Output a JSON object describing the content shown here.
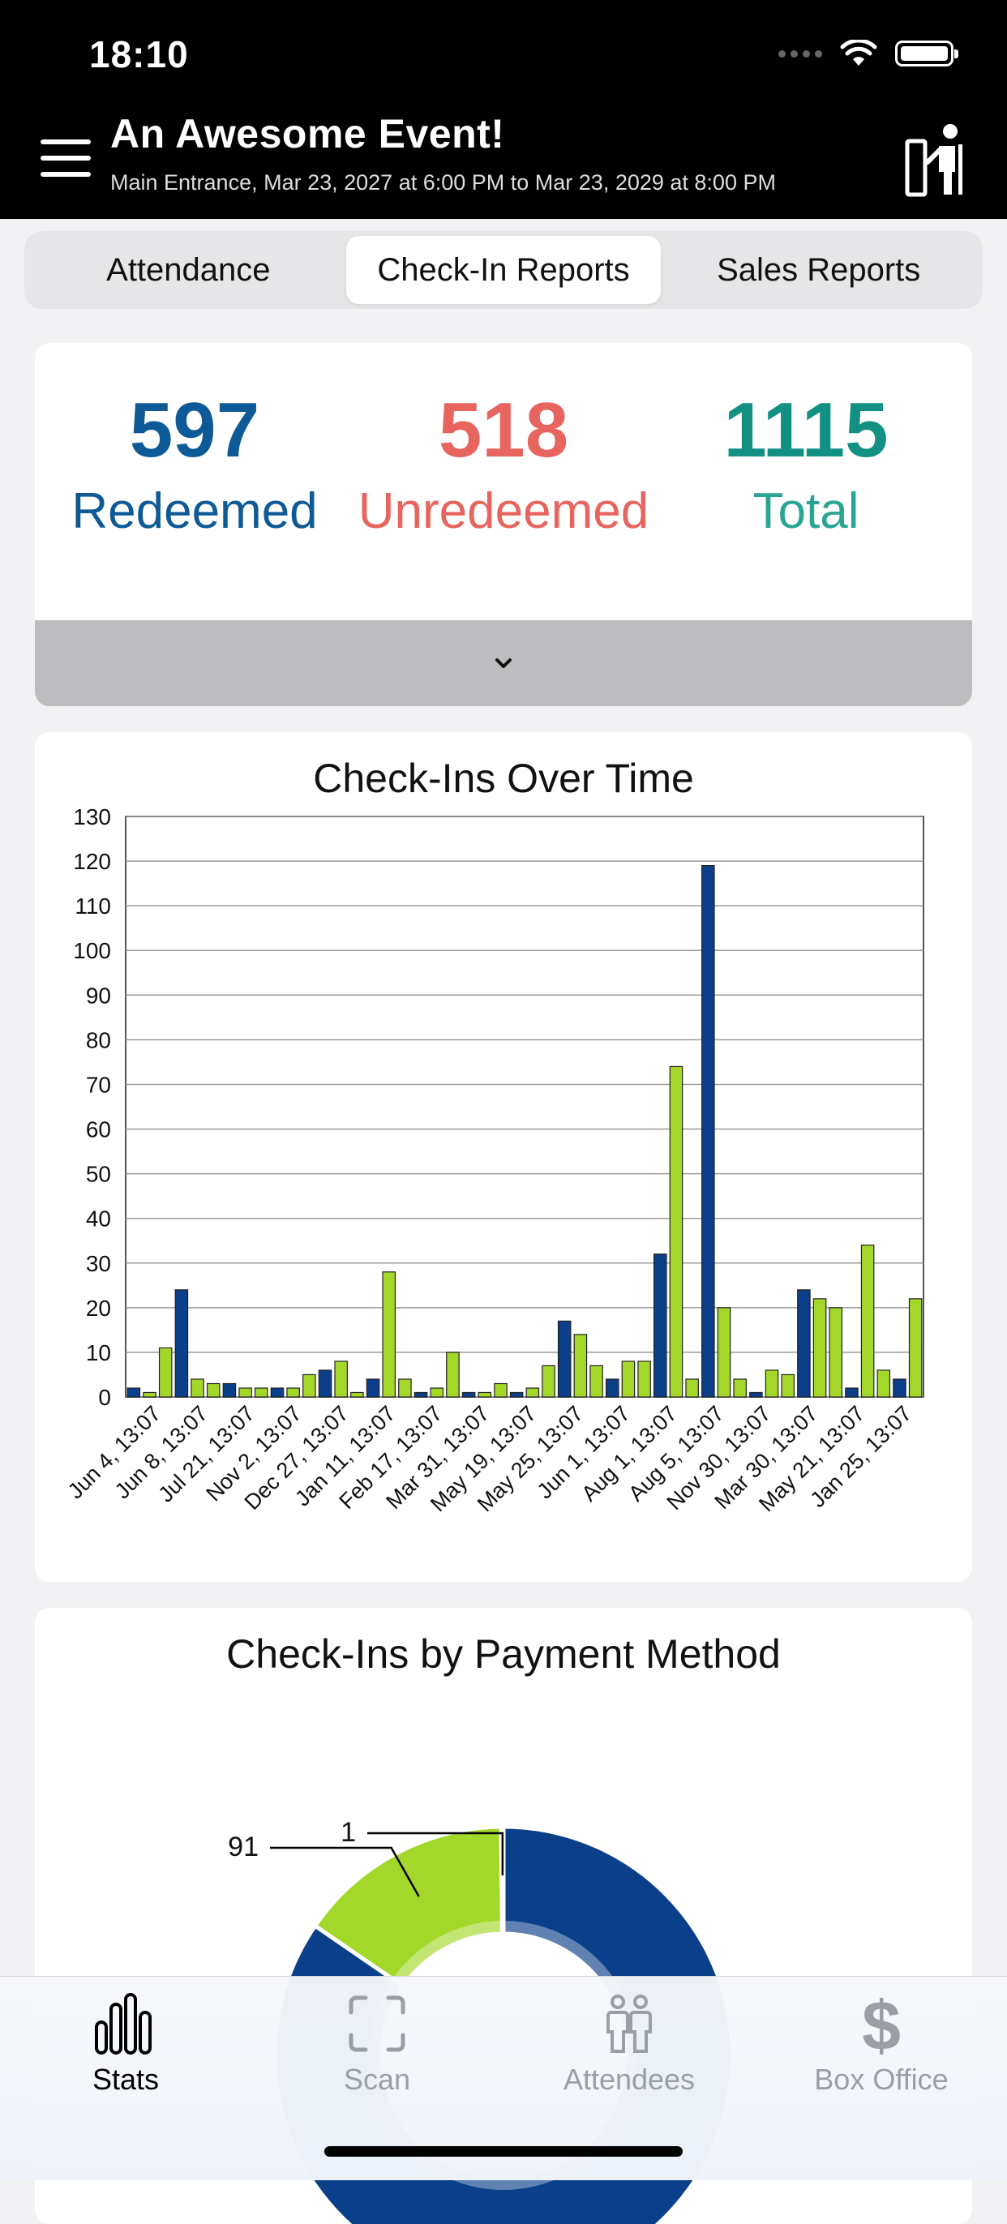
{
  "status_bar": {
    "time": "18:10"
  },
  "header": {
    "title": "An Awesome Event!",
    "subtitle": "Main Entrance, Mar 23, 2027 at 6:00 PM to Mar 23, 2029 at 8:00 PM"
  },
  "tabs": [
    {
      "label": "Attendance",
      "active": false
    },
    {
      "label": "Check-In Reports",
      "active": true
    },
    {
      "label": "Sales Reports",
      "active": false
    }
  ],
  "summary": {
    "redeemed": {
      "value": "597",
      "label": "Redeemed",
      "color": "#0d5a96"
    },
    "unredeemed": {
      "value": "518",
      "label": "Unredeemed",
      "color": "#e8645e"
    },
    "total": {
      "value": "1115",
      "label": "Total",
      "color": "#129183"
    }
  },
  "colors": {
    "navy": "#0b3f8a",
    "lime": "#a3d82a"
  },
  "chart_data": [
    {
      "type": "bar",
      "title": "Check-Ins Over Time",
      "xlabel": "",
      "ylabel": "",
      "ylim": [
        0,
        130
      ],
      "yticks": [
        0,
        10,
        20,
        30,
        40,
        50,
        60,
        70,
        80,
        90,
        100,
        110,
        120,
        130
      ],
      "grid": true,
      "tick_labels": [
        "Jun 4, 13:07",
        "Jun 8, 13:07",
        "Jul 21, 13:07",
        "Nov 2, 13:07",
        "Dec 27, 13:07",
        "Jan 11, 13:07",
        "Feb 17, 13:07",
        "Mar 31, 13:07",
        "May 19, 13:07",
        "May 25, 13:07",
        "Jun 1, 13:07",
        "Aug 1, 13:07",
        "Aug 5, 13:07",
        "Nov 30, 13:07",
        "Mar 30, 13:07",
        "May 21, 13:07",
        "Jan 25, 13:07"
      ],
      "bars": [
        {
          "v": 2,
          "c": "navy"
        },
        {
          "v": 1,
          "c": "lime"
        },
        {
          "v": 11,
          "c": "lime"
        },
        {
          "v": 24,
          "c": "navy"
        },
        {
          "v": 4,
          "c": "lime"
        },
        {
          "v": 3,
          "c": "lime"
        },
        {
          "v": 3,
          "c": "navy"
        },
        {
          "v": 2,
          "c": "lime"
        },
        {
          "v": 2,
          "c": "lime"
        },
        {
          "v": 2,
          "c": "navy"
        },
        {
          "v": 2,
          "c": "lime"
        },
        {
          "v": 5,
          "c": "lime"
        },
        {
          "v": 6,
          "c": "navy"
        },
        {
          "v": 8,
          "c": "lime"
        },
        {
          "v": 1,
          "c": "lime"
        },
        {
          "v": 4,
          "c": "navy"
        },
        {
          "v": 28,
          "c": "lime"
        },
        {
          "v": 4,
          "c": "lime"
        },
        {
          "v": 1,
          "c": "navy"
        },
        {
          "v": 2,
          "c": "lime"
        },
        {
          "v": 10,
          "c": "lime"
        },
        {
          "v": 1,
          "c": "navy"
        },
        {
          "v": 1,
          "c": "lime"
        },
        {
          "v": 3,
          "c": "lime"
        },
        {
          "v": 1,
          "c": "navy"
        },
        {
          "v": 2,
          "c": "lime"
        },
        {
          "v": 7,
          "c": "lime"
        },
        {
          "v": 17,
          "c": "navy"
        },
        {
          "v": 14,
          "c": "lime"
        },
        {
          "v": 7,
          "c": "lime"
        },
        {
          "v": 4,
          "c": "navy"
        },
        {
          "v": 8,
          "c": "lime"
        },
        {
          "v": 8,
          "c": "lime"
        },
        {
          "v": 32,
          "c": "navy"
        },
        {
          "v": 74,
          "c": "lime"
        },
        {
          "v": 4,
          "c": "lime"
        },
        {
          "v": 119,
          "c": "navy"
        },
        {
          "v": 20,
          "c": "lime"
        },
        {
          "v": 4,
          "c": "lime"
        },
        {
          "v": 1,
          "c": "navy"
        },
        {
          "v": 6,
          "c": "lime"
        },
        {
          "v": 5,
          "c": "lime"
        },
        {
          "v": 24,
          "c": "navy"
        },
        {
          "v": 22,
          "c": "lime"
        },
        {
          "v": 20,
          "c": "lime"
        },
        {
          "v": 2,
          "c": "navy"
        },
        {
          "v": 34,
          "c": "lime"
        },
        {
          "v": 6,
          "c": "lime"
        },
        {
          "v": 4,
          "c": "navy"
        },
        {
          "v": 22,
          "c": "lime"
        }
      ]
    },
    {
      "type": "pie",
      "title": "Check-Ins by Payment Method",
      "donut": true,
      "labels_shown": [
        "91",
        "1"
      ],
      "slices": [
        {
          "value": 91,
          "label": "91",
          "color": "#a3d82a"
        },
        {
          "value": 1,
          "label": "1",
          "color": "#ffffff"
        },
        {
          "value": 505,
          "color": "#0b3f8a"
        }
      ]
    }
  ],
  "tab_bar": [
    {
      "label": "Stats",
      "icon": "stats-icon",
      "active": true
    },
    {
      "label": "Scan",
      "icon": "scan-icon",
      "active": false
    },
    {
      "label": "Attendees",
      "icon": "attendees-icon",
      "active": false
    },
    {
      "label": "Box Office",
      "icon": "dollar-icon",
      "active": false
    }
  ]
}
